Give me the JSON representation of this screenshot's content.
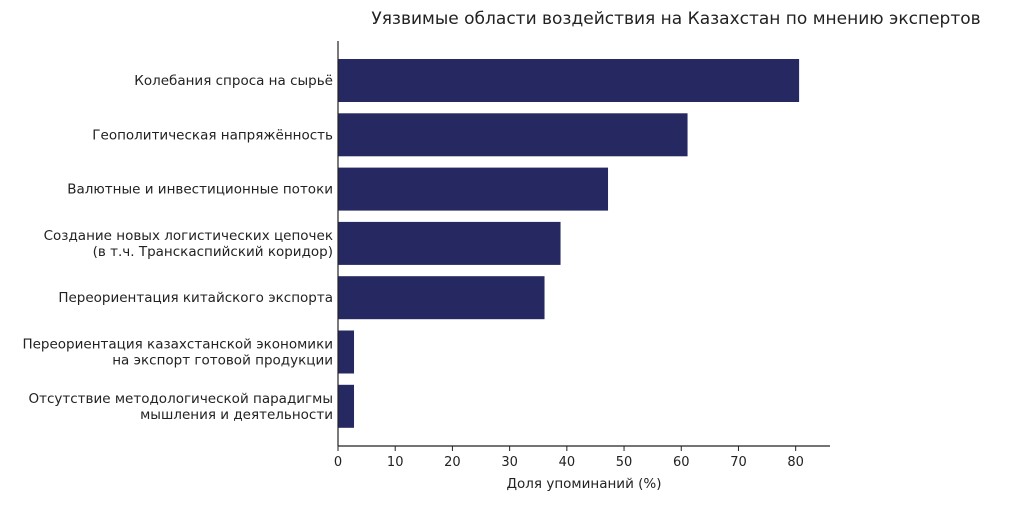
{
  "chart_data": {
    "type": "bar",
    "orientation": "horizontal",
    "title": "Уязвимые области воздействия на Казахстан по мнению экспертов",
    "xlabel": "Доля упоминаний (%)",
    "ylabel": "",
    "xlim": [
      0,
      86
    ],
    "xticks": [
      0,
      10,
      20,
      30,
      40,
      50,
      60,
      70,
      80
    ],
    "categories": [
      [
        "Колебания спроса на сырьё"
      ],
      [
        "Геополитическая напряжённость"
      ],
      [
        "Валютные и инвестиционные потоки"
      ],
      [
        "Создание новых логистических цепочек",
        "(в т.ч. Транскаспийский коридор)"
      ],
      [
        "Переориентация китайского экспорта"
      ],
      [
        "Переориентация казахстанской экономики",
        "на экспорт готовой продукции"
      ],
      [
        "Отсутствие методологической парадигмы",
        "мышления и деятельности"
      ]
    ],
    "values": [
      80.6,
      61.1,
      47.2,
      38.9,
      36.1,
      2.8,
      2.8
    ],
    "bar_color": "#262861",
    "grid": false,
    "legend": "none"
  }
}
